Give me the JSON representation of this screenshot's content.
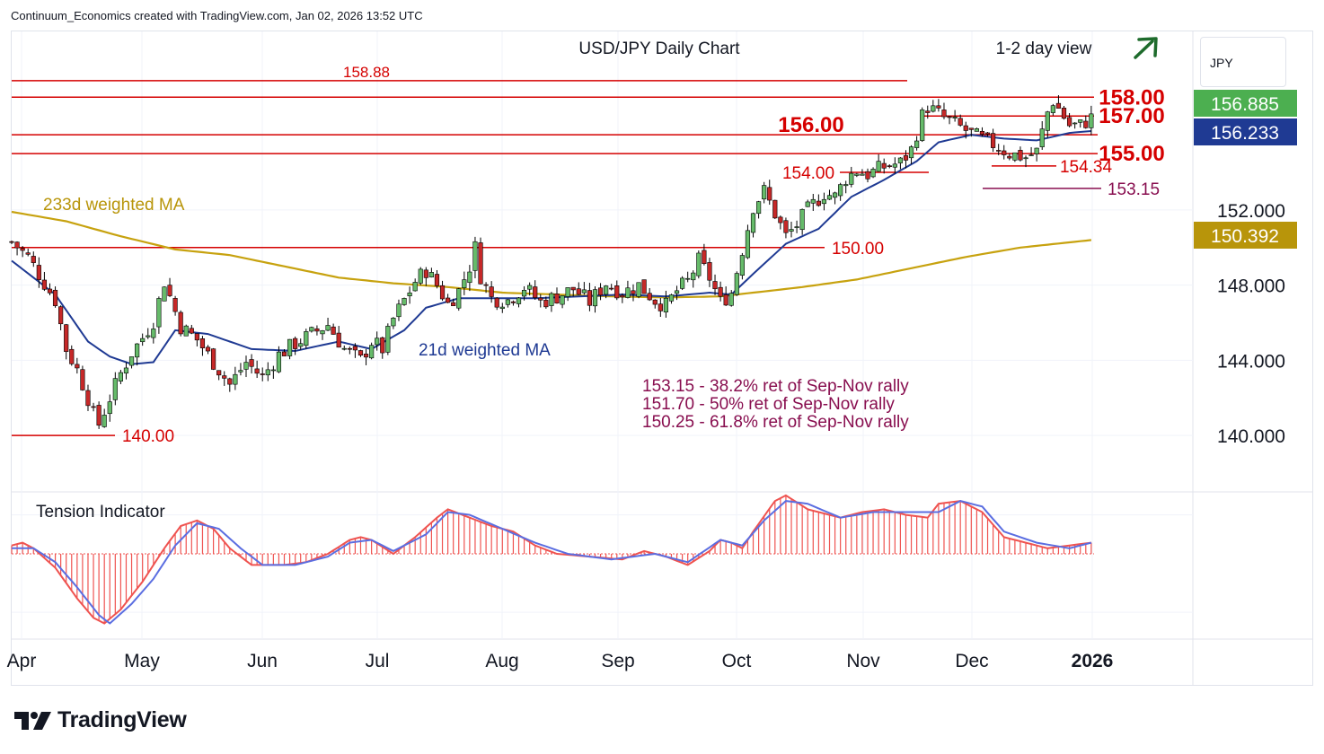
{
  "header": {
    "text": "Continuum_Economics created with TradingView.com, Jan 02, 2026 13:52 UTC"
  },
  "currency_button": {
    "label": "JPY"
  },
  "brand": {
    "name": "TradingView"
  },
  "colors": {
    "up": "#66bb6a",
    "down": "#c62828",
    "resistance": "#d50000",
    "fib": "#880e4f",
    "ma21": "#1f3a93",
    "ma233": "#c7a20f",
    "tension_fast": "#ef5350",
    "tension_slow": "#5b6ee1",
    "arrow": "#1e6b2c"
  },
  "chart_data": {
    "type": "candlestick",
    "title": "USD/JPY Daily Chart",
    "subtitle": "1-2 day view",
    "ylim": [
      137.0,
      161.5
    ],
    "y_ticks": [
      {
        "value": 140.0,
        "label": "140.000"
      },
      {
        "value": 144.0,
        "label": "144.000"
      },
      {
        "value": 148.0,
        "label": "148.000"
      },
      {
        "value": 152.0,
        "label": "152.000"
      }
    ],
    "x_ticks": [
      "Apr",
      "May",
      "Jun",
      "Jul",
      "Aug",
      "Sep",
      "Oct",
      "Nov",
      "Dec",
      "2026"
    ],
    "price_badges": [
      {
        "value": 156.885,
        "label": "156.885",
        "color": "#4caf50"
      },
      {
        "value": 156.233,
        "label": "156.233",
        "color": "#1f3a93"
      },
      {
        "value": 150.392,
        "label": "150.392",
        "color": "#b8950a"
      }
    ],
    "levels": [
      {
        "value": 158.88,
        "label": "158.88",
        "kind": "resistance"
      },
      {
        "value": 158.0,
        "label": "158.00",
        "kind": "resistance"
      },
      {
        "value": 157.0,
        "label": "157.00",
        "kind": "resistance"
      },
      {
        "value": 156.0,
        "label": "156.00",
        "kind": "resistance"
      },
      {
        "value": 155.0,
        "label": "155.00",
        "kind": "support"
      },
      {
        "value": 154.34,
        "label": "154.34",
        "kind": "support"
      },
      {
        "value": 154.0,
        "label": "154.00",
        "kind": "support"
      },
      {
        "value": 153.15,
        "label": "153.15",
        "kind": "fib"
      },
      {
        "value": 150.0,
        "label": "150.00",
        "kind": "support"
      },
      {
        "value": 140.0,
        "label": "140.00",
        "kind": "support"
      }
    ],
    "ma_labels": {
      "ma21": "21d weighted MA",
      "ma233": "233d weighted MA"
    },
    "annotations": [
      "153.15 - 38.2% ret of Sep-Nov rally",
      "151.70 - 50% ret of Sep-Nov rally",
      "150.25 - 61.8% ret of Sep-Nov rally"
    ],
    "indicator": {
      "name": "Tension Indicator"
    },
    "price_anchors": [
      [
        0,
        150.3
      ],
      [
        3,
        149.5
      ],
      [
        8,
        147.2
      ],
      [
        10,
        144.6
      ],
      [
        12,
        143.5
      ],
      [
        14,
        142.0
      ],
      [
        15,
        141.1
      ],
      [
        16,
        140.6
      ],
      [
        18,
        142.0
      ],
      [
        20,
        143.3
      ],
      [
        22,
        144.4
      ],
      [
        24,
        145.2
      ],
      [
        26,
        146.1
      ],
      [
        28,
        148.2
      ],
      [
        31,
        145.8
      ],
      [
        34,
        145.1
      ],
      [
        37,
        143.9
      ],
      [
        40,
        142.7
      ],
      [
        43,
        143.9
      ],
      [
        46,
        143.1
      ],
      [
        49,
        144.3
      ],
      [
        52,
        144.9
      ],
      [
        55,
        145.4
      ],
      [
        58,
        145.9
      ],
      [
        61,
        144.6
      ],
      [
        64,
        144.0
      ],
      [
        66,
        145.0
      ],
      [
        68,
        144.6
      ],
      [
        70,
        146.2
      ],
      [
        72,
        147.2
      ],
      [
        74,
        148.2
      ],
      [
        76,
        148.8
      ],
      [
        78,
        148.0
      ],
      [
        80,
        147.0
      ],
      [
        82,
        147.7
      ],
      [
        84,
        149.0
      ],
      [
        85,
        150.0
      ],
      [
        86,
        148.5
      ],
      [
        88,
        147.3
      ],
      [
        91,
        147.2
      ],
      [
        94,
        147.9
      ],
      [
        97,
        147.1
      ],
      [
        100,
        147.4
      ],
      [
        103,
        147.8
      ],
      [
        106,
        147.1
      ],
      [
        109,
        148.1
      ],
      [
        112,
        147.6
      ],
      [
        115,
        148.0
      ],
      [
        118,
        147.2
      ],
      [
        120,
        146.9
      ],
      [
        122,
        147.7
      ],
      [
        124,
        148.2
      ],
      [
        126,
        149.3
      ],
      [
        128,
        148.4
      ],
      [
        130,
        147.1
      ],
      [
        132,
        147.6
      ],
      [
        134,
        149.9
      ],
      [
        136,
        152.2
      ],
      [
        138,
        153.0
      ],
      [
        140,
        151.8
      ],
      [
        142,
        150.6
      ],
      [
        144,
        151.2
      ],
      [
        146,
        152.0
      ],
      [
        149,
        152.9
      ],
      [
        151,
        152.7
      ],
      [
        153,
        153.7
      ],
      [
        155,
        154.1
      ],
      [
        157,
        153.9
      ],
      [
        160,
        154.3
      ],
      [
        163,
        154.5
      ],
      [
        165,
        155.2
      ],
      [
        167,
        157.0
      ],
      [
        168,
        157.5
      ],
      [
        169,
        157.3
      ],
      [
        171,
        156.9
      ],
      [
        174,
        156.4
      ],
      [
        177,
        155.9
      ],
      [
        180,
        155.5
      ],
      [
        183,
        155.0
      ],
      [
        186,
        154.8
      ],
      [
        188,
        155.1
      ],
      [
        190,
        157.2
      ],
      [
        191,
        157.8
      ],
      [
        192,
        157.4
      ],
      [
        194,
        156.5
      ],
      [
        196,
        156.5
      ],
      [
        198,
        156.9
      ]
    ],
    "ma21_anchors": [
      [
        0,
        149.3
      ],
      [
        8,
        147.5
      ],
      [
        14,
        145.0
      ],
      [
        18,
        144.2
      ],
      [
        22,
        143.8
      ],
      [
        26,
        143.9
      ],
      [
        30,
        145.6
      ],
      [
        36,
        145.4
      ],
      [
        44,
        144.6
      ],
      [
        52,
        144.5
      ],
      [
        60,
        145.0
      ],
      [
        66,
        144.6
      ],
      [
        72,
        145.6
      ],
      [
        76,
        146.8
      ],
      [
        82,
        147.3
      ],
      [
        88,
        147.3
      ],
      [
        96,
        147.3
      ],
      [
        104,
        147.4
      ],
      [
        112,
        147.5
      ],
      [
        120,
        147.4
      ],
      [
        128,
        147.6
      ],
      [
        132,
        147.5
      ],
      [
        136,
        148.6
      ],
      [
        142,
        150.2
      ],
      [
        148,
        151.0
      ],
      [
        154,
        152.7
      ],
      [
        160,
        153.6
      ],
      [
        166,
        154.6
      ],
      [
        170,
        155.6
      ],
      [
        176,
        156.0
      ],
      [
        182,
        155.8
      ],
      [
        188,
        155.7
      ],
      [
        194,
        156.1
      ],
      [
        198,
        156.2
      ]
    ],
    "ma233_anchors": [
      [
        0,
        151.9
      ],
      [
        10,
        151.4
      ],
      [
        20,
        150.6
      ],
      [
        30,
        149.9
      ],
      [
        40,
        149.6
      ],
      [
        50,
        149.0
      ],
      [
        60,
        148.4
      ],
      [
        70,
        148.1
      ],
      [
        80,
        147.9
      ],
      [
        90,
        147.6
      ],
      [
        100,
        147.5
      ],
      [
        110,
        147.4
      ],
      [
        120,
        147.35
      ],
      [
        130,
        147.4
      ],
      [
        136,
        147.6
      ],
      [
        145,
        147.9
      ],
      [
        155,
        148.3
      ],
      [
        165,
        148.9
      ],
      [
        175,
        149.5
      ],
      [
        185,
        150.0
      ],
      [
        198,
        150.4
      ]
    ],
    "tension_fast_anchors": [
      [
        0,
        0.3
      ],
      [
        2,
        0.4
      ],
      [
        4,
        0.2
      ],
      [
        8,
        -0.5
      ],
      [
        12,
        -1.6
      ],
      [
        15,
        -2.3
      ],
      [
        17,
        -2.5
      ],
      [
        20,
        -2.0
      ],
      [
        24,
        -1.0
      ],
      [
        28,
        0.2
      ],
      [
        31,
        1.0
      ],
      [
        34,
        1.2
      ],
      [
        37,
        0.9
      ],
      [
        40,
        0.2
      ],
      [
        44,
        -0.4
      ],
      [
        50,
        -0.4
      ],
      [
        54,
        -0.3
      ],
      [
        58,
        0.0
      ],
      [
        62,
        0.5
      ],
      [
        64,
        0.6
      ],
      [
        66,
        0.5
      ],
      [
        70,
        0.0
      ],
      [
        74,
        0.6
      ],
      [
        78,
        1.3
      ],
      [
        80,
        1.6
      ],
      [
        84,
        1.3
      ],
      [
        88,
        1.0
      ],
      [
        92,
        0.8
      ],
      [
        96,
        0.3
      ],
      [
        100,
        0.0
      ],
      [
        106,
        -0.1
      ],
      [
        112,
        -0.2
      ],
      [
        116,
        0.1
      ],
      [
        120,
        -0.1
      ],
      [
        124,
        -0.4
      ],
      [
        128,
        0.1
      ],
      [
        130,
        0.5
      ],
      [
        132,
        0.4
      ],
      [
        134,
        0.2
      ],
      [
        136,
        0.8
      ],
      [
        140,
        1.9
      ],
      [
        142,
        2.1
      ],
      [
        146,
        1.6
      ],
      [
        152,
        1.3
      ],
      [
        156,
        1.5
      ],
      [
        160,
        1.6
      ],
      [
        164,
        1.4
      ],
      [
        168,
        1.3
      ],
      [
        170,
        1.8
      ],
      [
        174,
        1.9
      ],
      [
        178,
        1.5
      ],
      [
        182,
        0.6
      ],
      [
        186,
        0.4
      ],
      [
        190,
        0.2
      ],
      [
        194,
        0.3
      ],
      [
        198,
        0.4
      ]
    ],
    "tension_slow_anchors": [
      [
        0,
        0.2
      ],
      [
        4,
        0.2
      ],
      [
        8,
        -0.3
      ],
      [
        12,
        -1.2
      ],
      [
        16,
        -2.2
      ],
      [
        18,
        -2.5
      ],
      [
        22,
        -1.8
      ],
      [
        26,
        -0.9
      ],
      [
        30,
        0.3
      ],
      [
        34,
        1.1
      ],
      [
        38,
        0.9
      ],
      [
        42,
        0.2
      ],
      [
        46,
        -0.4
      ],
      [
        52,
        -0.4
      ],
      [
        58,
        -0.1
      ],
      [
        62,
        0.4
      ],
      [
        66,
        0.5
      ],
      [
        70,
        0.1
      ],
      [
        76,
        0.7
      ],
      [
        80,
        1.5
      ],
      [
        84,
        1.4
      ],
      [
        90,
        0.9
      ],
      [
        96,
        0.4
      ],
      [
        102,
        0.0
      ],
      [
        110,
        -0.2
      ],
      [
        118,
        0.0
      ],
      [
        124,
        -0.3
      ],
      [
        130,
        0.5
      ],
      [
        134,
        0.3
      ],
      [
        138,
        1.2
      ],
      [
        142,
        1.9
      ],
      [
        146,
        1.8
      ],
      [
        152,
        1.3
      ],
      [
        158,
        1.5
      ],
      [
        164,
        1.5
      ],
      [
        170,
        1.5
      ],
      [
        174,
        1.9
      ],
      [
        178,
        1.7
      ],
      [
        182,
        0.8
      ],
      [
        188,
        0.4
      ],
      [
        194,
        0.2
      ],
      [
        198,
        0.4
      ]
    ]
  }
}
